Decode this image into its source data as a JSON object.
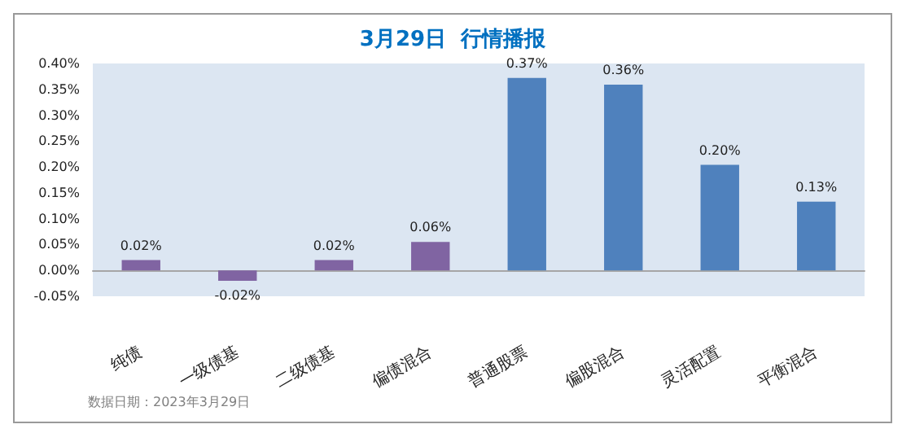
{
  "chart_data": {
    "type": "bar",
    "title": "3月29日  行情播报",
    "categories": [
      "纯债",
      "一级债基",
      "二级债基",
      "偏债混合",
      "普通股票",
      "偏股混合",
      "灵活配置",
      "平衡混合"
    ],
    "values": [
      0.02,
      -0.02,
      0.02,
      0.055,
      0.372,
      0.359,
      0.204,
      0.133
    ],
    "value_labels": [
      "0.02%",
      "-0.02%",
      "0.02%",
      "0.06%",
      "0.37%",
      "0.36%",
      "0.20%",
      "0.13%"
    ],
    "colors": [
      "#8064a2",
      "#8064a2",
      "#8064a2",
      "#8064a2",
      "#4f81bd",
      "#4f81bd",
      "#4f81bd",
      "#4f81bd"
    ],
    "ylim": [
      -0.05,
      0.4
    ],
    "yticks": [
      {
        "value": -0.05,
        "label": "-0.05%"
      },
      {
        "value": 0,
        "label": "0.00%"
      },
      {
        "value": 0.05,
        "label": "0.05%"
      },
      {
        "value": 0.1,
        "label": "0.10%"
      },
      {
        "value": 0.15,
        "label": "0.15%"
      },
      {
        "value": 0.2,
        "label": "0.20%"
      },
      {
        "value": 0.25,
        "label": "0.25%"
      },
      {
        "value": 0.3,
        "label": "0.30%"
      },
      {
        "value": 0.35,
        "label": "0.35%"
      },
      {
        "value": 0.4,
        "label": "0.40%"
      }
    ],
    "annotations": [
      "数据日期：2023年3月29日"
    ]
  }
}
